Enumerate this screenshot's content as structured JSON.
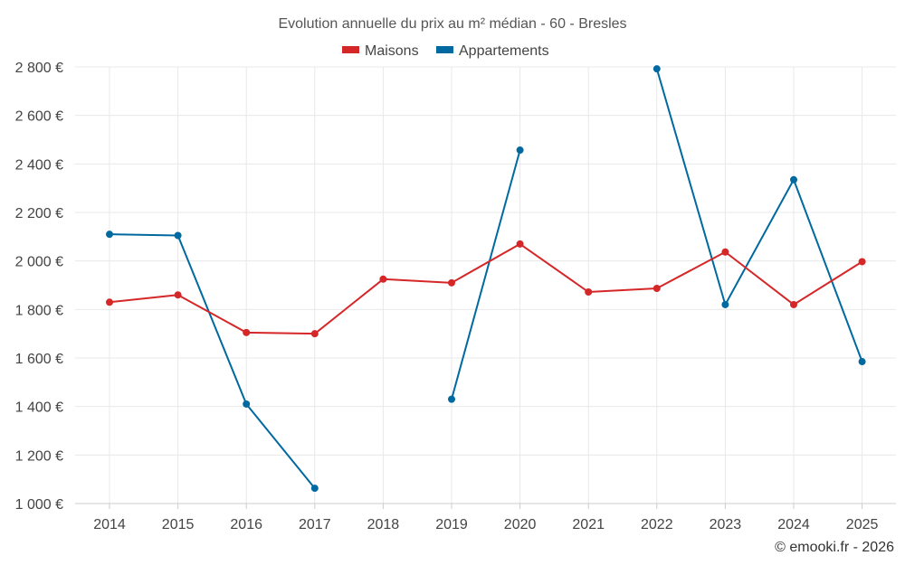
{
  "chart_data": {
    "type": "line",
    "title": "Evolution annuelle du prix au m² médian - 60 - Bresles",
    "x": [
      "2014",
      "2015",
      "2016",
      "2017",
      "2018",
      "2019",
      "2020",
      "2021",
      "2022",
      "2023",
      "2024",
      "2025"
    ],
    "ylim": [
      1000,
      2800
    ],
    "yticks": [
      1000,
      1200,
      1400,
      1600,
      1800,
      2000,
      2200,
      2400,
      2600,
      2800
    ],
    "ytick_labels": [
      "1 000 €",
      "1 200 €",
      "1 400 €",
      "1 600 €",
      "1 800 €",
      "2 000 €",
      "2 200 €",
      "2 400 €",
      "2 600 €",
      "2 800 €"
    ],
    "grid": true,
    "legend_position": "top-center",
    "series": [
      {
        "name": "Maisons",
        "color": "#d62728",
        "values": [
          1830,
          1860,
          1705,
          1700,
          1925,
          1910,
          2070,
          1872,
          1887,
          2037,
          1820,
          1997
        ]
      },
      {
        "name": "Appartements",
        "color": "#0069a0",
        "values": [
          2110,
          2105,
          1410,
          1063,
          null,
          1430,
          2457,
          null,
          2792,
          1820,
          2335,
          1585
        ]
      }
    ]
  },
  "credit": "© emooki.fr - 2026"
}
